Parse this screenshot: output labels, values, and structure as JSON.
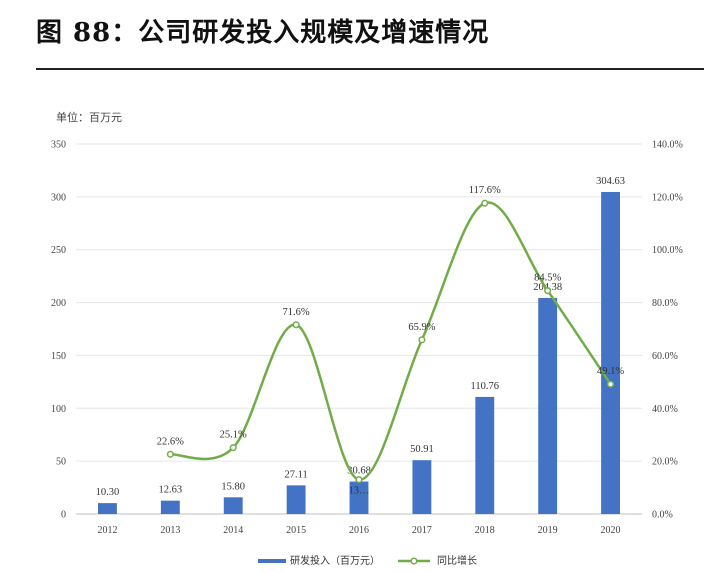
{
  "figure": {
    "title": "图 88：公司研发投入规模及增速情况",
    "unit_label": "单位：百万元"
  },
  "chart_data": {
    "type": "bar",
    "categories": [
      "2012",
      "2013",
      "2014",
      "2015",
      "2016",
      "2017",
      "2018",
      "2019",
      "2020"
    ],
    "series": [
      {
        "name": "研发投入（百万元）",
        "type": "bar",
        "axis": "left",
        "color": "#4472C4",
        "values": [
          10.3,
          12.63,
          15.8,
          27.11,
          30.68,
          50.91,
          110.76,
          204.38,
          304.63
        ],
        "labels": [
          "10.30",
          "12.63",
          "15.80",
          "27.11",
          "30.68",
          "50.91",
          "110.76",
          "204.38",
          "304.63"
        ]
      },
      {
        "name": "同比增长",
        "type": "line",
        "axis": "right",
        "color": "#70AD47",
        "values": [
          null,
          22.6,
          25.1,
          71.6,
          13.0,
          65.9,
          117.6,
          84.5,
          49.1
        ],
        "labels": [
          "",
          "22.6%",
          "25.1%",
          "71.6%",
          "13…",
          "65.9%",
          "117.6%",
          "84.5%",
          "49.1%"
        ]
      }
    ],
    "y_left": {
      "min": 0,
      "max": 350,
      "ticks": [
        "0",
        "50",
        "100",
        "150",
        "200",
        "250",
        "300",
        "350"
      ]
    },
    "y_right": {
      "min": 0,
      "max": 140,
      "ticks": [
        "0.0%",
        "20.0%",
        "40.0%",
        "60.0%",
        "80.0%",
        "100.0%",
        "120.0%",
        "140.0%"
      ]
    },
    "grid": true,
    "legend": "bottom"
  }
}
